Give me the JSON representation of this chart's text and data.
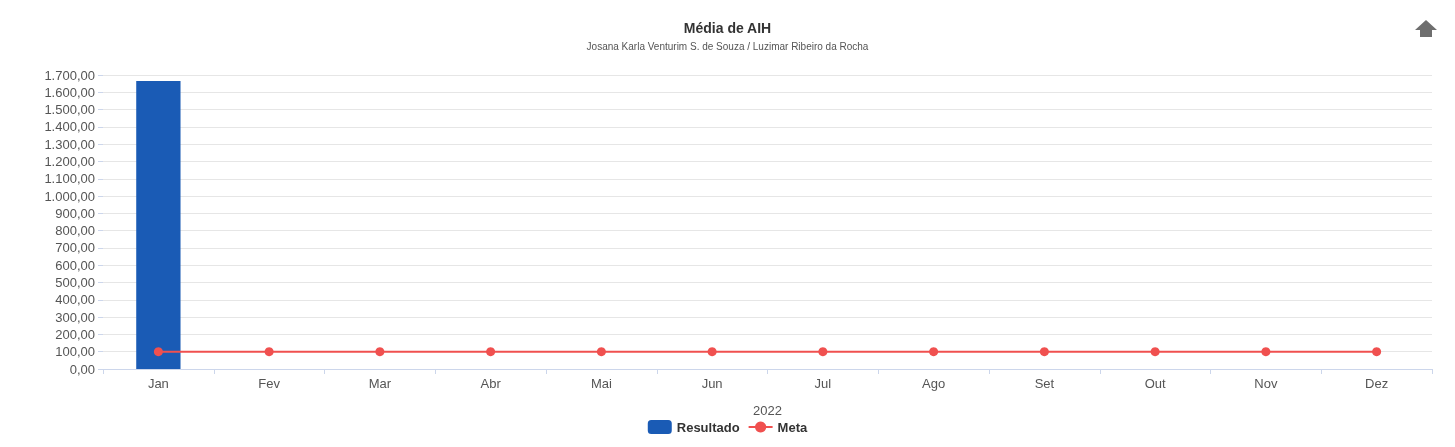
{
  "chart_data": {
    "type": "bar",
    "title": "Média de AIH",
    "subtitle": "Josana Karla Venturim S. de Souza / Luzimar Ribeiro da Rocha",
    "xlabel": "2022",
    "categories": [
      "Jan",
      "Fev",
      "Mar",
      "Abr",
      "Mai",
      "Jun",
      "Jul",
      "Ago",
      "Set",
      "Out",
      "Nov",
      "Dez"
    ],
    "series": [
      {
        "name": "Resultado",
        "color": "#1a5bb5",
        "values": [
          1665,
          null,
          null,
          null,
          null,
          null,
          null,
          null,
          null,
          null,
          null,
          null
        ]
      },
      {
        "name": "Meta",
        "type": "line",
        "color": "#f0504f",
        "values": [
          100,
          100,
          100,
          100,
          100,
          100,
          100,
          100,
          100,
          100,
          100,
          100
        ]
      }
    ],
    "ylim": [
      0,
      1700
    ],
    "yticks": [
      {
        "value": 0,
        "label": "0,00"
      },
      {
        "value": 100,
        "label": "100,00"
      },
      {
        "value": 200,
        "label": "200,00"
      },
      {
        "value": 300,
        "label": "300,00"
      },
      {
        "value": 400,
        "label": "400,00"
      },
      {
        "value": 500,
        "label": "500,00"
      },
      {
        "value": 600,
        "label": "600,00"
      },
      {
        "value": 700,
        "label": "700,00"
      },
      {
        "value": 800,
        "label": "800,00"
      },
      {
        "value": 900,
        "label": "900,00"
      },
      {
        "value": 1000,
        "label": "1.000,00"
      },
      {
        "value": 1100,
        "label": "1.100,00"
      },
      {
        "value": 1200,
        "label": "1.200,00"
      },
      {
        "value": 1300,
        "label": "1.300,00"
      },
      {
        "value": 1400,
        "label": "1.400,00"
      },
      {
        "value": 1500,
        "label": "1.500,00"
      },
      {
        "value": 1600,
        "label": "1.600,00"
      },
      {
        "value": 1700,
        "label": "1.700,00"
      }
    ],
    "grid": "y",
    "legend": "bottom",
    "marker": "circle"
  }
}
